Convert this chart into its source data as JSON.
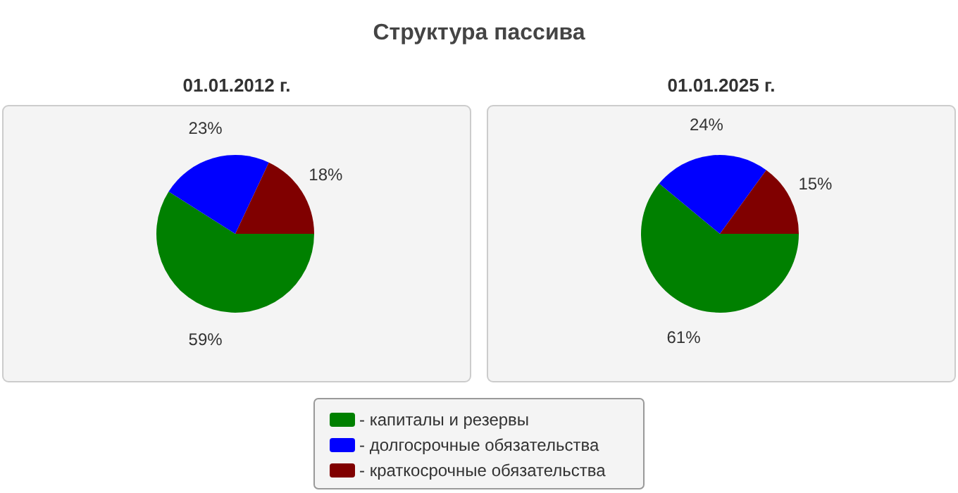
{
  "chart_data": [
    {
      "type": "pie",
      "title": "Структура пассива",
      "subtitle": "01.01.2012 г.",
      "categories": [
        "- капиталы и резервы",
        "- долгосрочные обязательства",
        "- краткосрочные обязательства"
      ],
      "values": [
        59,
        23,
        18
      ],
      "value_labels": [
        "59%",
        "23%",
        "18%"
      ],
      "colors": [
        "#008000",
        "#0000ff",
        "#800000"
      ],
      "legend": "bottom"
    },
    {
      "type": "pie",
      "subtitle": "01.01.2025 г.",
      "categories": [
        null,
        null,
        null
      ],
      "values": [
        61,
        24,
        15
      ],
      "value_labels": [
        "61%",
        "24%",
        "15%"
      ],
      "colors": [
        "#008000",
        "#0000ff",
        "#800000"
      ]
    }
  ]
}
